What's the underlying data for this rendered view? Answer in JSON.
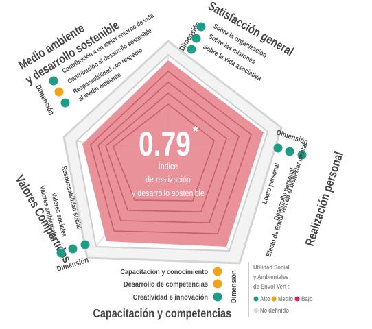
{
  "center": {
    "value": "0.79",
    "asterisk": "*",
    "label_line1": "Índice",
    "label_line2": "de realización",
    "label_line3": "y desarrollo sostenible"
  },
  "dimension_word": "Dimensión",
  "dimensions": [
    {
      "title": "Satisfacción general",
      "items": [
        {
          "label": "Sobre la organización",
          "status": "alto"
        },
        {
          "label": "Sobre las misiones",
          "status": "alto"
        },
        {
          "label": "Sobre la vida asociativa",
          "status": "alto"
        }
      ]
    },
    {
      "title": "Realización personal",
      "items": [
        {
          "label": "Logro personal",
          "status": "alto"
        },
        {
          "label": "Desarrollo personal",
          "status": "alto"
        },
        {
          "label": "Efecto de Envol Vert en el bienestar mental",
          "status": "alto"
        }
      ]
    },
    {
      "title": "Capacitación y competencias",
      "items": [
        {
          "label": "Capacitación y conocimiento",
          "status": "medio"
        },
        {
          "label": "Desarrollo de competencias",
          "status": "medio"
        },
        {
          "label": "Creatividad e innovación",
          "status": "alto"
        }
      ]
    },
    {
      "title": "Valores Compartidos",
      "items": [
        {
          "label": "Responsabilidad social",
          "status": "alto"
        },
        {
          "label": "Valores sociales",
          "status": "alto"
        },
        {
          "label": "Valores ambientales",
          "status": "alto"
        }
      ]
    },
    {
      "title_line1": "Medio ambiente",
      "title_line2": "y desarrollo sostenible",
      "items": [
        {
          "label": "Contribución a un mejor entorno de vida",
          "status": "alto"
        },
        {
          "label": "Contribución al desarrollo sostenible",
          "status": "medio"
        },
        {
          "label": "Responsabilidad con respecto",
          "label2": "al medio ambiente",
          "status": "alto"
        }
      ]
    }
  ],
  "legend": {
    "line1": "Utilidad Social",
    "line2": "y Ambientales",
    "line3": "de Envol Vert :",
    "alto": "Alto",
    "medio": "Medio",
    "bajo": "Bajo",
    "no_definido": "No definido"
  },
  "colors": {
    "alto": "#1f9c86",
    "medio": "#f2a318",
    "bajo": "#d81e5b",
    "no_definido": "#d9d9d9",
    "fill": "#e8868f",
    "title": "#444444",
    "text": "#444444"
  }
}
